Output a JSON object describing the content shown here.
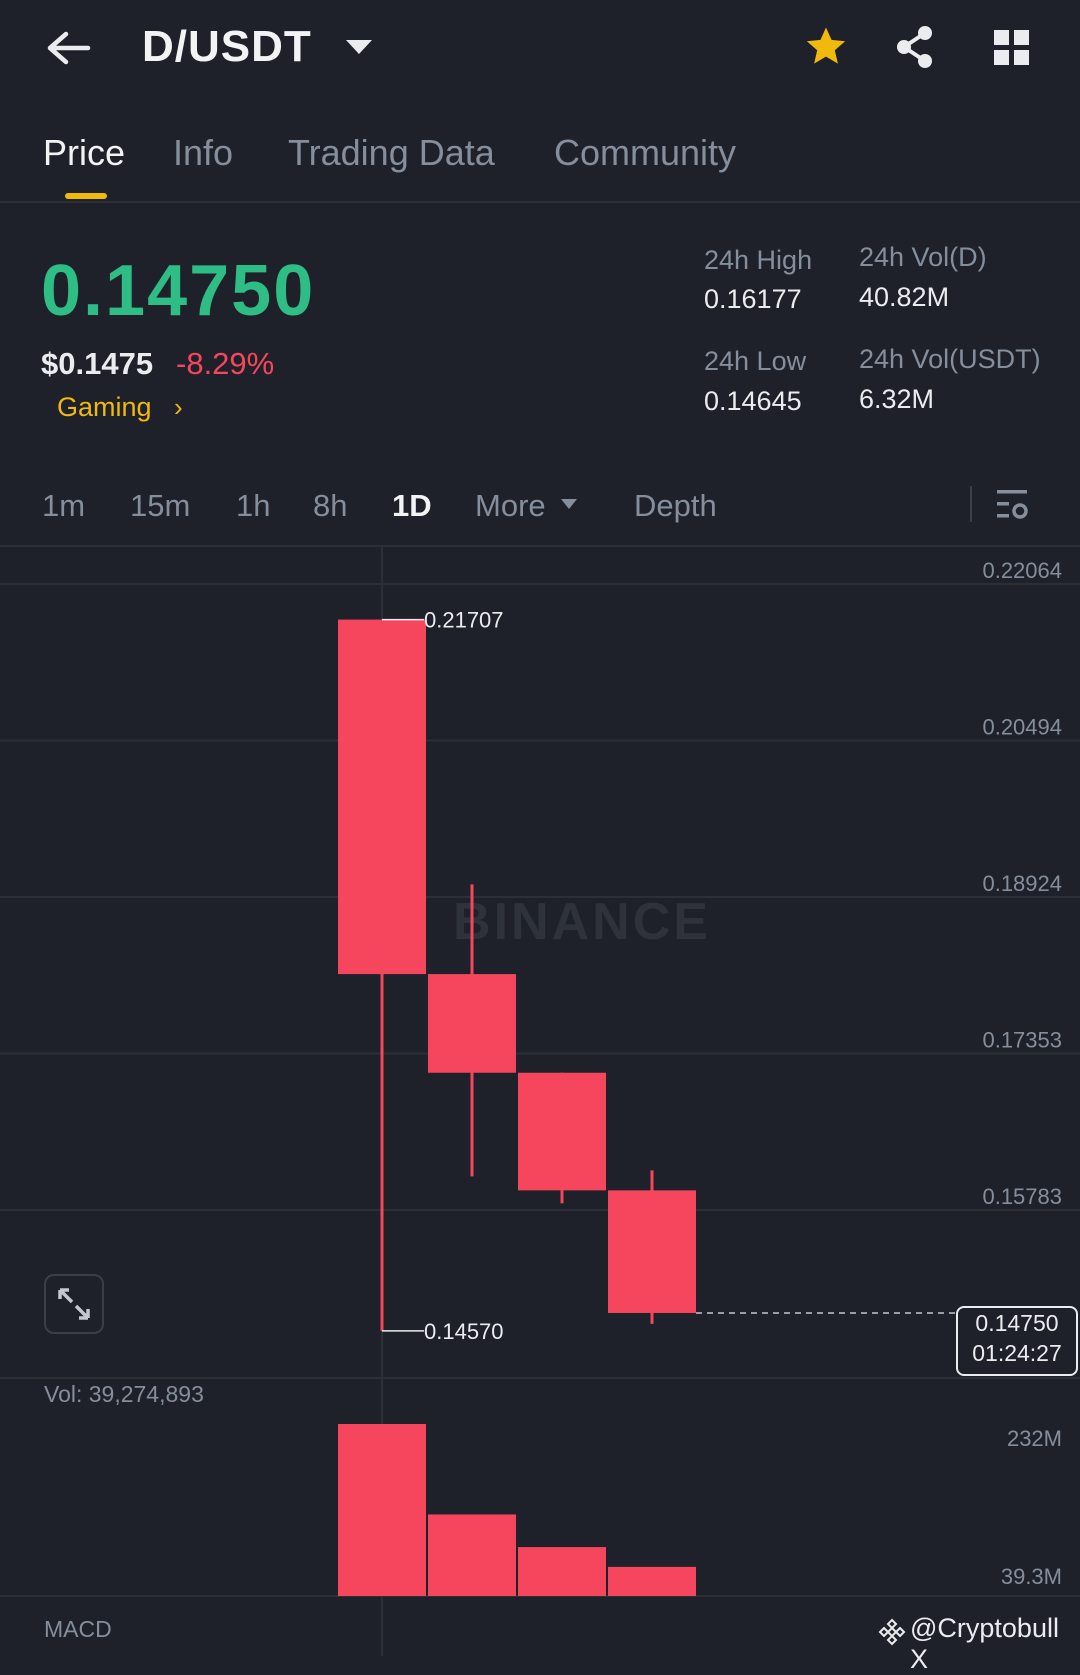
{
  "header": {
    "pair": "D/USDT",
    "icons": [
      "back-arrow-icon",
      "chevron-down-icon",
      "star-icon",
      "share-icon",
      "grid-icon"
    ],
    "favorite_color": "#f0b90b"
  },
  "tabs": [
    {
      "label": "Price",
      "active": true
    },
    {
      "label": "Info",
      "active": false
    },
    {
      "label": "Trading Data",
      "active": false
    },
    {
      "label": "Community",
      "active": false
    }
  ],
  "ticker": {
    "last_price": "0.14750",
    "usd_price": "$0.1475",
    "change": "-8.29%",
    "tag": "Gaming",
    "high_label": "24h High",
    "high_value": "0.16177",
    "low_label": "24h Low",
    "low_value": "0.14645",
    "vol_base_label": "24h Vol(D)",
    "vol_base_value": "40.82M",
    "vol_quote_label": "24h Vol(USDT)",
    "vol_quote_value": "6.32M"
  },
  "intervals": [
    {
      "label": "1m",
      "active": false
    },
    {
      "label": "15m",
      "active": false
    },
    {
      "label": "1h",
      "active": false
    },
    {
      "label": "8h",
      "active": false
    },
    {
      "label": "1D",
      "active": true
    },
    {
      "label": "More",
      "active": false
    },
    {
      "label": "Depth",
      "active": false
    }
  ],
  "colors": {
    "up": "#2ebd85",
    "down": "#f6465d",
    "accent": "#f0b90b",
    "background": "#1e2129"
  },
  "chart_data": {
    "type": "candlestick",
    "interval": "1D",
    "watermark": "BINANCE",
    "price_ticks": [
      "0.22064",
      "0.20494",
      "0.18924",
      "0.17353",
      "0.15783"
    ],
    "ylim": [
      0.1457,
      0.2226
    ],
    "candles": [
      {
        "open": 0.21707,
        "high": 0.21707,
        "low": 0.1457,
        "close": 0.1815,
        "volume": 232000000
      },
      {
        "open": 0.1815,
        "high": 0.1905,
        "low": 0.1612,
        "close": 0.1716,
        "volume": 110000000
      },
      {
        "open": 0.1716,
        "high": 0.1716,
        "low": 0.1585,
        "close": 0.1598,
        "volume": 66000000
      },
      {
        "open": 0.1598,
        "high": 0.1618,
        "low": 0.1464,
        "close": 0.1475,
        "volume": 39274893
      }
    ],
    "high_marker": "0.21707",
    "low_marker": "0.14570",
    "current_price": "0.14750",
    "countdown": "01:24:27",
    "volume_label": "Vol: 39,274,893",
    "volume_ticks": [
      "232M",
      "39.3M"
    ],
    "volume_ylim": [
      0,
      232000000
    ],
    "indicator_label": "MACD"
  },
  "watermark_credit": "@Cryptobull X"
}
